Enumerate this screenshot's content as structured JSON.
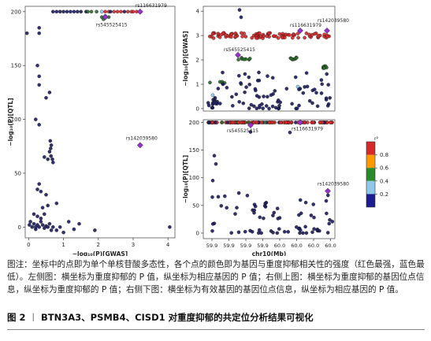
{
  "chart_data": [
    {
      "type": "scatter",
      "id": "left",
      "xlabel": "−log₁₀(P)[GWAS]",
      "ylabel": "−log₁₀(P)[QTL]",
      "xlim": [
        -0.1,
        4.2
      ],
      "ylim": [
        -10,
        205
      ],
      "xticks": [
        0,
        1,
        2,
        3,
        4
      ],
      "yticks": [
        0,
        50,
        100,
        150,
        200
      ],
      "annotations": [
        {
          "label": "rs116631979",
          "x": 3.2,
          "y": 200
        },
        {
          "label": "rs545525415",
          "x": 2.2,
          "y": 195
        },
        {
          "label": "rs142039580",
          "x": 3.2,
          "y": 76
        }
      ],
      "points": [
        [
          -0.05,
          180
        ],
        [
          0.3,
          185
        ],
        [
          0.3,
          180
        ],
        [
          0.3,
          140
        ],
        [
          0.25,
          150
        ],
        [
          0.3,
          132
        ],
        [
          0.2,
          100
        ],
        [
          0.3,
          95
        ],
        [
          0.5,
          120
        ],
        [
          0.6,
          125
        ],
        [
          0.62,
          80
        ],
        [
          0.65,
          76
        ],
        [
          0.63,
          73
        ],
        [
          0.6,
          70
        ],
        [
          0.64,
          66
        ],
        [
          0.55,
          63
        ],
        [
          0.68,
          63
        ],
        [
          0.7,
          60
        ],
        [
          0.45,
          65
        ],
        [
          0.3,
          40
        ],
        [
          0.25,
          35
        ],
        [
          0.35,
          33
        ],
        [
          0.5,
          30
        ],
        [
          0.55,
          20
        ],
        [
          0.8,
          22
        ],
        [
          0.35,
          8
        ],
        [
          0.02,
          2
        ],
        [
          0.05,
          5
        ],
        [
          0.1,
          0
        ],
        [
          0.15,
          3
        ],
        [
          0.2,
          -2
        ],
        [
          0.25,
          2
        ],
        [
          0.3,
          0
        ],
        [
          0.35,
          5
        ],
        [
          0.4,
          2
        ],
        [
          0.45,
          -1
        ],
        [
          0.5,
          1
        ],
        [
          0.6,
          3
        ],
        [
          0.7,
          0
        ],
        [
          0.8,
          -3
        ],
        [
          0.9,
          0
        ],
        [
          1.0,
          -5
        ],
        [
          1.15,
          5
        ],
        [
          1.3,
          -2
        ],
        [
          1.45,
          3
        ],
        [
          1.9,
          -3
        ],
        [
          4.05,
          0
        ],
        [
          0.15,
          12
        ],
        [
          0.45,
          12
        ],
        [
          0.4,
          18
        ],
        [
          0.7,
          200
        ],
        [
          0.8,
          200
        ],
        [
          0.9,
          200
        ],
        [
          1.0,
          200
        ],
        [
          1.1,
          200
        ],
        [
          1.2,
          200
        ],
        [
          1.3,
          200
        ],
        [
          1.4,
          200
        ],
        [
          1.5,
          200
        ],
        [
          1.65,
          200
        ],
        [
          1.7,
          200
        ],
        [
          1.8,
          200
        ],
        [
          1.95,
          200
        ],
        [
          2.1,
          200
        ],
        [
          2.2,
          200
        ],
        [
          2.3,
          200
        ],
        [
          2.35,
          200
        ],
        [
          2.45,
          200
        ],
        [
          2.55,
          200
        ],
        [
          2.65,
          200
        ],
        [
          2.75,
          200
        ],
        [
          2.85,
          200
        ],
        [
          2.95,
          200
        ],
        [
          3.0,
          200
        ],
        [
          3.1,
          200
        ],
        [
          2.1,
          195
        ],
        [
          2.2,
          196
        ],
        [
          2.3,
          195
        ],
        [
          2.15,
          193
        ],
        [
          0.2,
          0
        ],
        [
          0.25,
          10
        ],
        [
          0.55,
          0
        ],
        [
          0.65,
          -3
        ]
      ],
      "point_colors": [
        "#1c1c5e",
        "#1c1c5e",
        "#1c1c5e",
        "#1c1c5e",
        "#1c1c5e",
        "#1c1c5e",
        "#1c1c5e",
        "#1c1c5e",
        "#1c1c5e",
        "#1c1c5e",
        "#1c1c5e",
        "#1c1c5e",
        "#1c1c5e",
        "#1c1c5e",
        "#1c1c5e",
        "#1c1c5e",
        "#1c1c5e",
        "#1c1c5e",
        "#1c1c5e",
        "#1c1c5e",
        "#1c1c5e",
        "#1c1c5e",
        "#1c1c5e",
        "#1c1c5e",
        "#1c1c5e",
        "#1c1c5e",
        "#1c1c5e",
        "#1c1c5e",
        "#1c1c5e",
        "#1c1c5e",
        "#1c1c5e",
        "#1c1c5e",
        "#1c1c5e",
        "#1c1c5e",
        "#1c1c5e",
        "#1c1c5e",
        "#1c1c5e",
        "#1c1c5e",
        "#1c1c5e",
        "#1c1c5e",
        "#1c1c5e",
        "#1c1c5e",
        "#1c1c5e",
        "#1c1c5e",
        "#1c1c5e",
        "#1c1c5e",
        "#1c1c5e",
        "#1c1c5e",
        "#1c1c5e",
        "#1c1c5e",
        "#1c1c5e",
        "#1c1c5e",
        "#1c1c5e",
        "#1c1c5e",
        "#1c1c5e",
        "#1c1c5e",
        "#1c1c5e",
        "#1c1c5e",
        "#1c1c5e",
        "#1c1c5e",
        "#2a6b2a",
        "#2a6b2a",
        "#2a6b2a",
        "#8fc8e8",
        "#d42a2a",
        "#d42a2a",
        "#1c1c5e",
        "#d42a2a",
        "#d42a2a",
        "#d42a2a",
        "#1c1c5e",
        "#d42a2a",
        "#d42a2a",
        "#d42a2a",
        "#d42a2a",
        "#2a6b2a",
        "#2a6b2a",
        "#2a6b2a",
        "#2a6b2a",
        "#1c1c5e",
        "#1c1c5e",
        "#1c1c5e",
        "#1c1c5e"
      ]
    },
    {
      "type": "scatter",
      "id": "top-right",
      "ylabel": "−log₁₀(P)[GWAS]",
      "xlim": [
        59.88,
        60.02
      ],
      "ylim": [
        -0.1,
        4.2
      ],
      "yticks": [
        0,
        1,
        2,
        3,
        4
      ],
      "annotations": [
        {
          "label": "rs116631979",
          "x": 60.0,
          "y": 3.2
        },
        {
          "label": "rs142039580",
          "x": 60.01,
          "y": 3.2
        },
        {
          "label": "rs545525415",
          "x": 59.91,
          "y": 2.2
        }
      ]
    },
    {
      "type": "scatter",
      "id": "bottom-right",
      "xlabel": "chr10(Mb)",
      "ylabel": "−log₁₀(P)[QTL]",
      "xlim": [
        59.88,
        60.02
      ],
      "ylim": [
        -10,
        205
      ],
      "xtick_labels": [
        "59.9",
        "59.9",
        "59.9",
        "59.9",
        "60.0",
        "60.0",
        "60.0",
        "60.0"
      ],
      "yticks": [
        0,
        50,
        100,
        150,
        200
      ],
      "annotations": [
        {
          "label": "rs545525415",
          "x": 59.91,
          "y": 195
        },
        {
          "label": "rs116631979",
          "x": 60.0,
          "y": 200
        },
        {
          "label": "rs142039580",
          "x": 60.01,
          "y": 76
        }
      ]
    }
  ],
  "legend": {
    "title": "r²",
    "labels": [
      "0.8",
      "0.6",
      "0.4",
      "0.2"
    ],
    "colors": [
      "#d42a2a",
      "#ff9900",
      "#2a8a2a",
      "#8fc8e8",
      "#1c1c8e"
    ]
  },
  "colors": {
    "red": "#d42a2a",
    "green": "#2a6b2a",
    "navy": "#1c1c5e",
    "lightblue": "#8fc8e8",
    "purple": "#9b30d0"
  },
  "caption": {
    "note": "图注：坐标中的点即为单个单核苷酸多态性，各个点的颜色即为基因与重度抑郁相关性的强度（红色最强，蓝色最低）。左侧图：横坐标为重度抑郁的 P 值，纵坐标为相应基因的 P 值；右侧上图：横坐标为重度抑郁的基因位点信息，纵坐标为重度抑郁的 P 值；右侧下图：横坐标为有效基因的基因位点信息，纵坐标为相应基因的 P 值。",
    "fig_label": "图 2",
    "fig_sep": "丨",
    "fig_title": "BTN3A3、PSMB4、CISD1 对重度抑郁的共定位分析结果可视化"
  }
}
